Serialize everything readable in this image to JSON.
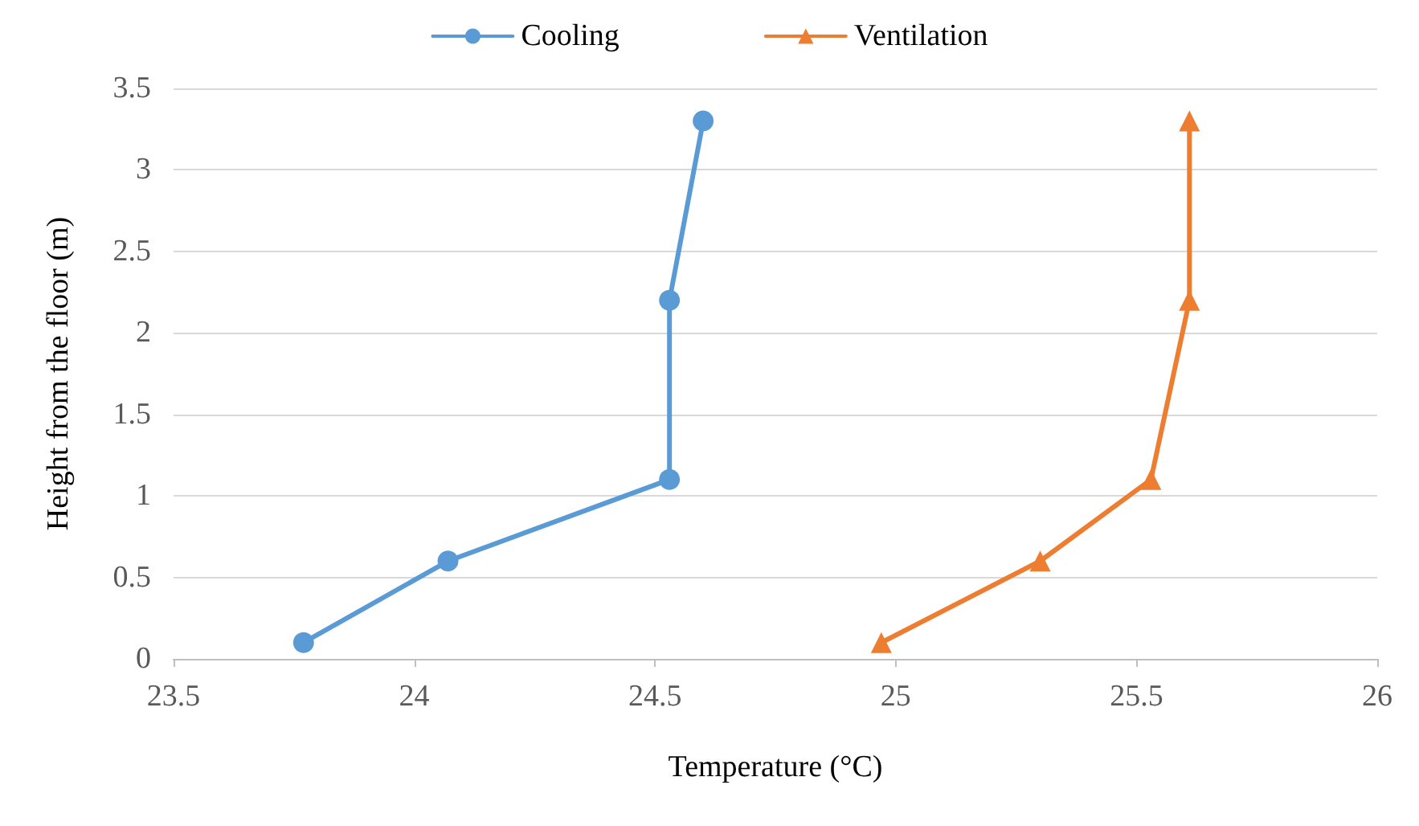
{
  "chart_data": {
    "type": "line",
    "xlabel": "Temperature (°C)",
    "ylabel": "Height from the floor (m)",
    "xlim": [
      23.5,
      26
    ],
    "xticks": [
      23.5,
      24,
      24.5,
      25,
      25.5,
      26
    ],
    "ylim": [
      0,
      3.5
    ],
    "yticks": [
      0,
      0.5,
      1,
      1.5,
      2,
      2.5,
      3,
      3.5
    ],
    "grid": "y",
    "legend": "top",
    "series": [
      {
        "name": "Cooling",
        "color": "#5b9bd5",
        "marker": "circle",
        "x": [
          23.77,
          24.07,
          24.53,
          24.53,
          24.6
        ],
        "values": [
          0.1,
          0.6,
          1.1,
          2.2,
          3.3
        ]
      },
      {
        "name": "Ventilation",
        "color": "#ed7d31",
        "marker": "triangle",
        "x": [
          24.97,
          25.3,
          25.53,
          25.61,
          25.61
        ],
        "values": [
          0.1,
          0.6,
          1.1,
          2.2,
          3.3
        ]
      }
    ]
  }
}
